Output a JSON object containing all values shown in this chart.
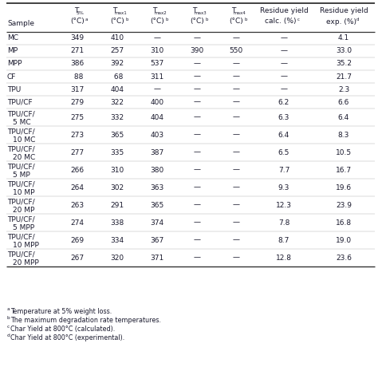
{
  "rows": [
    [
      "MC",
      "349",
      "410",
      "—",
      "—",
      "—",
      "—",
      "4.1"
    ],
    [
      "MP",
      "271",
      "257",
      "310",
      "390",
      "550",
      "—",
      "33.0"
    ],
    [
      "MPP",
      "386",
      "392",
      "537",
      "—",
      "—",
      "—",
      "35.2"
    ],
    [
      "CF",
      " 88",
      " 68",
      "311",
      "—",
      "—",
      "—",
      "21.7"
    ],
    [
      "TPU",
      "317",
      "404",
      "—",
      "—",
      "—",
      "—",
      "2.3"
    ],
    [
      "TPU/CF",
      "279",
      "322",
      "400",
      "—",
      "—",
      "6.2",
      "6.6"
    ],
    [
      "TPU/CF/\n5 MC",
      "275",
      "332",
      "404",
      "—",
      "—",
      "6.3",
      "6.4"
    ],
    [
      "TPU/CF/\n10 MC",
      "273",
      "365",
      "403",
      "—",
      "—",
      "6.4",
      "8.3"
    ],
    [
      "TPU/CF/\n20 MC",
      "277",
      "335",
      "387",
      "—",
      "—",
      "6.5",
      "10.5"
    ],
    [
      "TPU/CF/\n5 MP",
      "266",
      "310",
      "380",
      "—",
      "—",
      "7.7",
      "16.7"
    ],
    [
      "TPU/CF/\n10 MP",
      "264",
      "302",
      "363",
      "—",
      "—",
      "9.3",
      "19.6"
    ],
    [
      "TPU/CF/\n20 MP",
      "263",
      "291",
      "365",
      "—",
      "—",
      "12.3",
      "23.9"
    ],
    [
      "TPU/CF/\n5 MPP",
      "274",
      "338",
      "374",
      "—",
      "—",
      "7.8",
      "16.8"
    ],
    [
      "TPU/CF/\n10 MPP",
      "269",
      "334",
      "367",
      "—",
      "—",
      "8.7",
      "19.0"
    ],
    [
      "TPU/CF/\n20 MPP",
      "267",
      "320",
      "371",
      "—",
      "—",
      "12.8",
      "23.6"
    ]
  ],
  "footnotes": [
    "aTemperature at 5% weight loss.",
    "bThe maximum degradation rate temperatures.",
    "cChar Yield at 800°C (calculated).",
    "dChar Yield at 800°C (experimental)."
  ],
  "footnote_supers": [
    "a",
    "b",
    "c",
    "d"
  ],
  "footnote_bodies": [
    "Temperature at 5% weight loss.",
    "The maximum degradation rate temperatures.",
    "Char Yield at 800°C (calculated).",
    "Char Yield at 800°C (experimental)."
  ],
  "bg_color": "#ffffff",
  "text_color": "#1a1a2e",
  "line_color": "#333333"
}
